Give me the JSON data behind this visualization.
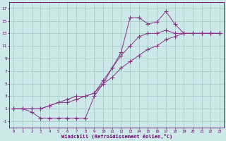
{
  "xlabel": "Windchill (Refroidissement éolien,°C)",
  "background_color": "#cce8e8",
  "grid_color": "#aacccc",
  "line_color": "#883388",
  "xlim": [
    -0.5,
    23.5
  ],
  "ylim": [
    -2,
    18
  ],
  "xticks": [
    0,
    1,
    2,
    3,
    4,
    5,
    6,
    7,
    8,
    9,
    10,
    11,
    12,
    13,
    14,
    15,
    16,
    17,
    18,
    19,
    20,
    21,
    22,
    23
  ],
  "yticks": [
    -1,
    1,
    3,
    5,
    7,
    9,
    11,
    13,
    15,
    17
  ],
  "line1_x": [
    0,
    1,
    2,
    3,
    4,
    5,
    6,
    7,
    8,
    9,
    10,
    11,
    12,
    13,
    14,
    15,
    16,
    17,
    18,
    19,
    20,
    21,
    22,
    23
  ],
  "line1_y": [
    1,
    1,
    1,
    1,
    1.5,
    2,
    2,
    2.5,
    3,
    3.5,
    5,
    6,
    7.5,
    8.5,
    9.5,
    10.5,
    11,
    12,
    12.5,
    13,
    13,
    13,
    13,
    13
  ],
  "line2_x": [
    0,
    1,
    2,
    3,
    4,
    5,
    6,
    7,
    8,
    9,
    10,
    11,
    12,
    13,
    14,
    15,
    16,
    17,
    18,
    19,
    20,
    21,
    22,
    23
  ],
  "line2_y": [
    1,
    1,
    1,
    1,
    1.5,
    2,
    2.5,
    3,
    3,
    3.5,
    5.5,
    7.5,
    9.5,
    11,
    12.5,
    13,
    13,
    13.5,
    13,
    13,
    13,
    13,
    13,
    13
  ],
  "line3_x": [
    0,
    1,
    2,
    3,
    4,
    5,
    6,
    7,
    8,
    9,
    10,
    11,
    12,
    13,
    14,
    15,
    16,
    17,
    18,
    19,
    20,
    21,
    22,
    23
  ],
  "line3_y": [
    1,
    1,
    0.5,
    -0.5,
    -0.5,
    -0.5,
    -0.5,
    -0.5,
    -0.5,
    3,
    5,
    7.5,
    10,
    15.5,
    15.5,
    14.5,
    14.8,
    16.5,
    14.5,
    13,
    13,
    13,
    13,
    13
  ]
}
